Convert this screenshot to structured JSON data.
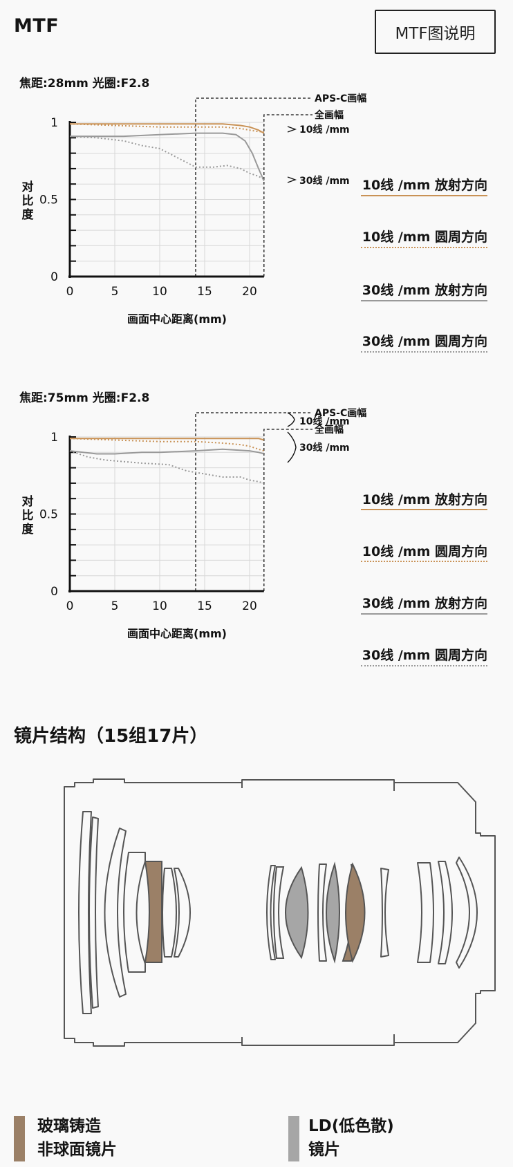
{
  "header": {
    "title": "MTF",
    "explain_button": "MTF图说明"
  },
  "colors": {
    "gold": "#c99256",
    "gray": "#999999",
    "cast_asph": "#9b8067",
    "ld": "#a6a6a6",
    "outline": "#4d4d4d"
  },
  "charts": [
    {
      "caption": "焦距:28mm 光圈:F2.8",
      "aps_label": "APS-C画幅",
      "full_label": "全画幅",
      "tag_10": "10线 /mm",
      "tag_30": "30线 /mm",
      "ylabel": [
        "对",
        "比",
        "度"
      ],
      "xlabel": "画面中心距离(mm)",
      "yticks": [
        "1",
        "0.5",
        "0"
      ],
      "xticks": [
        "0",
        "5",
        "10",
        "15",
        "20"
      ],
      "legend": [
        "10线 /mm 放射方向",
        "10线 /mm 圆周方向",
        "30线 /mm 放射方向",
        "30线 /mm 圆周方向"
      ]
    },
    {
      "caption": "焦距:75mm 光圈:F2.8",
      "aps_label": "APS-C画幅",
      "full_label": "全画幅",
      "tag_10": "10线 /mm",
      "tag_30": "30线 /mm",
      "ylabel": [
        "对",
        "比",
        "度"
      ],
      "xlabel": "画面中心距离(mm)",
      "yticks": [
        "1",
        "0.5",
        "0"
      ],
      "xticks": [
        "0",
        "5",
        "10",
        "15",
        "20"
      ],
      "legend": [
        "10线 /mm 放射方向",
        "10线 /mm 圆周方向",
        "30线 /mm 放射方向",
        "30线 /mm 圆周方向"
      ]
    }
  ],
  "chart_data": [
    {
      "type": "line",
      "title": "焦距:28mm 光圈:F2.8",
      "xlabel": "画面中心距离(mm)",
      "ylabel": "对比度",
      "xlim": [
        0,
        21.6
      ],
      "ylim": [
        0,
        1
      ],
      "aps_c_limit": 14,
      "full_frame_limit": 21.6,
      "series": [
        {
          "name": "10线 /mm 放射方向",
          "color": "#c99256",
          "dash": false,
          "x": [
            0,
            5,
            10,
            14,
            17,
            19,
            20,
            21,
            21.6
          ],
          "y": [
            0.99,
            0.99,
            0.99,
            0.99,
            0.99,
            0.98,
            0.97,
            0.95,
            0.93
          ]
        },
        {
          "name": "10线 /mm 圆周方向",
          "color": "#c99256",
          "dash": true,
          "x": [
            0,
            5,
            10,
            14,
            17,
            19,
            20,
            21,
            21.6
          ],
          "y": [
            0.99,
            0.98,
            0.97,
            0.97,
            0.97,
            0.96,
            0.95,
            0.94,
            0.94
          ]
        },
        {
          "name": "30线 /mm 放射方向",
          "color": "#999999",
          "dash": false,
          "x": [
            0,
            3,
            6,
            10,
            14,
            17,
            18.5,
            19.5,
            20.3,
            21,
            21.6
          ],
          "y": [
            0.91,
            0.91,
            0.91,
            0.92,
            0.93,
            0.93,
            0.92,
            0.88,
            0.8,
            0.7,
            0.62
          ]
        },
        {
          "name": "30线 /mm 圆周方向",
          "color": "#999999",
          "dash": true,
          "x": [
            0,
            3,
            6,
            8,
            10,
            12,
            14,
            16,
            17.5,
            19,
            20,
            21,
            21.6
          ],
          "y": [
            0.91,
            0.9,
            0.88,
            0.85,
            0.83,
            0.77,
            0.71,
            0.71,
            0.72,
            0.7,
            0.67,
            0.65,
            0.63
          ]
        }
      ]
    },
    {
      "type": "line",
      "title": "焦距:75mm 光圈:F2.8",
      "xlabel": "画面中心距离(mm)",
      "ylabel": "对比度",
      "xlim": [
        0,
        21.6
      ],
      "ylim": [
        0,
        1
      ],
      "aps_c_limit": 14,
      "full_frame_limit": 21.6,
      "series": [
        {
          "name": "10线 /mm 放射方向",
          "color": "#c99256",
          "dash": false,
          "x": [
            0,
            5,
            10,
            14,
            18,
            21,
            21.6
          ],
          "y": [
            0.99,
            0.99,
            0.99,
            0.99,
            0.99,
            0.99,
            0.98
          ]
        },
        {
          "name": "10线 /mm 圆周方向",
          "color": "#c99256",
          "dash": true,
          "x": [
            0,
            5,
            10,
            14,
            17,
            19,
            20,
            21,
            21.6
          ],
          "y": [
            0.99,
            0.98,
            0.97,
            0.97,
            0.96,
            0.95,
            0.94,
            0.92,
            0.91
          ]
        },
        {
          "name": "30线 /mm 放射方向",
          "color": "#999999",
          "dash": false,
          "x": [
            0,
            3,
            5,
            8,
            10,
            14,
            17,
            20,
            21,
            21.6
          ],
          "y": [
            0.91,
            0.89,
            0.89,
            0.9,
            0.9,
            0.91,
            0.92,
            0.91,
            0.9,
            0.89
          ]
        },
        {
          "name": "30线 /mm 圆周方向",
          "color": "#999999",
          "dash": true,
          "x": [
            0,
            2,
            4,
            8,
            11,
            13,
            15,
            17,
            19,
            20,
            21,
            21.6
          ],
          "y": [
            0.91,
            0.87,
            0.85,
            0.83,
            0.82,
            0.78,
            0.76,
            0.74,
            0.74,
            0.72,
            0.71,
            0.7
          ]
        }
      ]
    }
  ],
  "lens": {
    "title": "镜片结构（15组17片）",
    "key_cast": [
      "玻璃铸造",
      "非球面镜片"
    ],
    "key_ld": [
      "LD(低色散)",
      "镜片"
    ]
  }
}
